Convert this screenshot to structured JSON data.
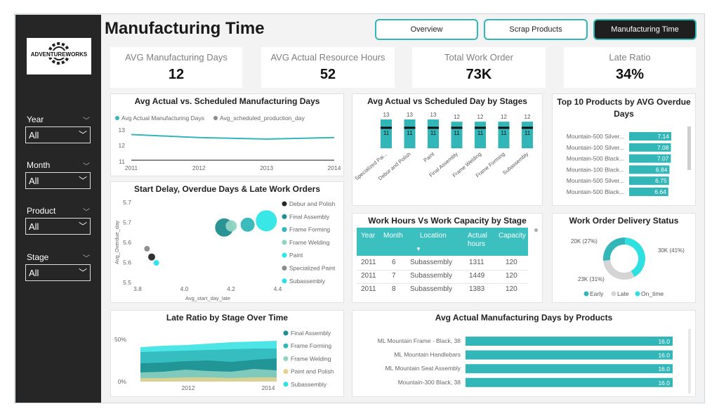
{
  "title": "Manufacturing Time",
  "nav": [
    "Overview",
    "Scrap Products",
    "Manufacturing Time"
  ],
  "logo_text": "ADVENTUREWORKS",
  "slicers": [
    {
      "label": "Year",
      "value": "All"
    },
    {
      "label": "Month",
      "value": "All"
    },
    {
      "label": "Product",
      "value": "All"
    },
    {
      "label": "Stage",
      "value": "All"
    }
  ],
  "kpis": [
    {
      "label": "AVG Manufacturing Days",
      "value": "12"
    },
    {
      "label": "AVG Actual Resource Hours",
      "value": "52"
    },
    {
      "label": "Total Work Order",
      "value": "73K"
    },
    {
      "label": "Late Ratio",
      "value": "34%"
    }
  ],
  "colors": {
    "teal": "#33b6b8",
    "grey": "#8a8a8a",
    "dark": "#262626"
  },
  "table": {
    "title": "Work Hours Vs Work Capacity by Stage",
    "columns": [
      "Year",
      "Month",
      "Location",
      "Actual hours",
      "Capacity"
    ],
    "rows": [
      [
        "2011",
        "6",
        "Subassembly",
        "1311",
        "120"
      ],
      [
        "2011",
        "7",
        "Subassembly",
        "1449",
        "120"
      ],
      [
        "2011",
        "8",
        "Subassembly",
        "1383",
        "120"
      ]
    ]
  },
  "chart_data": [
    {
      "type": "line",
      "title": "Avg Actual vs. Scheduled Manufacturing Days",
      "x": [
        "2011",
        "2012",
        "2013",
        "2014"
      ],
      "ylim": [
        11,
        13
      ],
      "yticks": [
        "13",
        "12",
        "11"
      ],
      "series": [
        {
          "name": "Avg Actual Manufacturing Days",
          "values": [
            12.7,
            12.5,
            12.4,
            12.5
          ]
        },
        {
          "name": "Avg_scheduled_production_day",
          "values": [
            11.0,
            11.0,
            11.0,
            11.0
          ]
        }
      ]
    },
    {
      "type": "bar",
      "title": "Avg Actual vs Scheduled Day by Stages",
      "categories": [
        "Specialized Pai...",
        "Debur and Polish",
        "Paint",
        "Final Assembly",
        "Frame Welding",
        "Frame Forming",
        "Subassembly"
      ],
      "series": [
        {
          "name": "Actual",
          "values": [
            13,
            13,
            13,
            12,
            12,
            12,
            12
          ]
        },
        {
          "name": "Scheduled",
          "values": [
            11,
            11,
            11,
            11,
            11,
            11,
            11
          ]
        }
      ]
    },
    {
      "type": "bar",
      "title": "Top 10 Products by AVG Overdue Days",
      "categories": [
        "Mountain-500 Silver...",
        "Mountain-100 Silver...",
        "Mountain-500 Black...",
        "Mountain-100 Black...",
        "Mountain-500 Silver...",
        "Mountain-500 Black..."
      ],
      "values": [
        7.14,
        7.08,
        7.07,
        6.84,
        6.75,
        6.64
      ],
      "labels": [
        "7.14",
        "7.08",
        "7.07",
        "6.84",
        "6.75",
        "6.64"
      ]
    },
    {
      "type": "scatter",
      "title": "Start Delay, Overdue Days & Late Work Orders",
      "xlabel": "Avg_start_day_late",
      "ylabel": "Avg_Overdue_day",
      "xticks": [
        "3.8",
        "4.0",
        "4.2",
        "4.4"
      ],
      "yticks": [
        "5.7",
        "5.7",
        "5.6",
        "5.6",
        "5.5"
      ],
      "xlim": [
        3.8,
        4.4
      ],
      "ylim": [
        5.55,
        5.75
      ],
      "series": [
        {
          "name": "Debur and Polish",
          "color": "#262626",
          "x": 3.86,
          "y": 5.613,
          "size": 5
        },
        {
          "name": "Final Assembly",
          "color": "#1f8e8e",
          "x": 4.17,
          "y": 5.688,
          "size": 13
        },
        {
          "name": "Frame Forming",
          "color": "#33b6b8",
          "x": 4.27,
          "y": 5.695,
          "size": 10
        },
        {
          "name": "Frame Welding",
          "color": "#8fd4c3",
          "x": 4.2,
          "y": 5.692,
          "size": 8
        },
        {
          "name": "Paint",
          "color": "#2ee6e6",
          "x": 4.35,
          "y": 5.705,
          "size": 15
        },
        {
          "name": "Specialized Paint",
          "color": "#8a8a8a",
          "x": 3.84,
          "y": 5.634,
          "size": 4
        },
        {
          "name": "Subassembly",
          "color": "#29e0e8",
          "x": 3.88,
          "y": 5.598,
          "size": 4
        }
      ]
    },
    {
      "type": "pie",
      "title": "Work Order Delivery Status",
      "slices": [
        {
          "name": "On_time",
          "value": 30,
          "label": "30K (41%)",
          "color": "#2ee0e0"
        },
        {
          "name": "Late",
          "value": 23,
          "label": "23K (31%)",
          "color": "#d4d4d4"
        },
        {
          "name": "Early",
          "value": 20,
          "label": "20K (27%)",
          "color": "#33b6b8"
        }
      ],
      "legend": [
        "Early",
        "Late",
        "On_time"
      ]
    },
    {
      "type": "area",
      "title": "Late Ratio by Stage Over Time",
      "yticks": [
        "50%",
        "0%"
      ],
      "xticks": [
        "2012",
        "2014"
      ],
      "legend": [
        "Final Assembly",
        "Frame Forming",
        "Frame Welding",
        "Paint and Polish",
        "Subassembly"
      ]
    },
    {
      "type": "bar",
      "title": "Avg Actual Manufacturing Days by Products",
      "categories": [
        "ML Mountain Frame - Black, 38",
        "ML Mountain Handlebars",
        "ML Mountain Seat Assembly",
        "Mountain-300 Black, 38"
      ],
      "values": [
        16.0,
        16.0,
        16.0,
        16.0
      ],
      "labels": [
        "16.0",
        "16.0",
        "16.0",
        "16.0"
      ]
    }
  ]
}
